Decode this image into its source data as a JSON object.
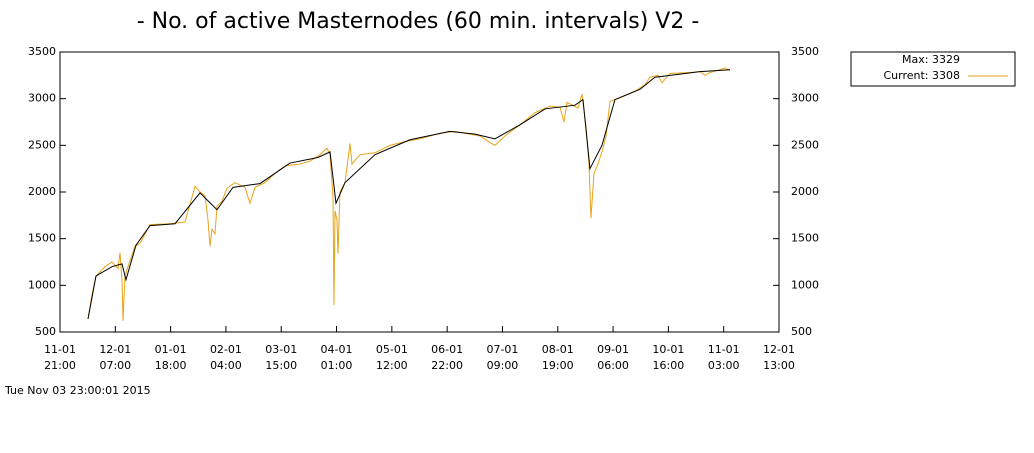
{
  "chart_data": {
    "type": "line",
    "title": "- No. of active Masternodes (60 min. intervals) V2 -",
    "legend_note": "Max: 3329",
    "timestamp": "Tue Nov 03 23:00:01 2015",
    "xlim": [
      0,
      13
    ],
    "xticks": [
      {
        "value": 0,
        "label": [
          "11-01",
          "21:00"
        ]
      },
      {
        "value": 1,
        "label": [
          "12-01",
          "07:00"
        ]
      },
      {
        "value": 2,
        "label": [
          "01-01",
          "18:00"
        ]
      },
      {
        "value": 3,
        "label": [
          "02-01",
          "04:00"
        ]
      },
      {
        "value": 4,
        "label": [
          "03-01",
          "15:00"
        ]
      },
      {
        "value": 5,
        "label": [
          "04-01",
          "01:00"
        ]
      },
      {
        "value": 6,
        "label": [
          "05-01",
          "12:00"
        ]
      },
      {
        "value": 7,
        "label": [
          "06-01",
          "22:00"
        ]
      },
      {
        "value": 8,
        "label": [
          "07-01",
          "09:00"
        ]
      },
      {
        "value": 9,
        "label": [
          "08-01",
          "19:00"
        ]
      },
      {
        "value": 10,
        "label": [
          "09-01",
          "06:00"
        ]
      },
      {
        "value": 11,
        "label": [
          "10-01",
          "16:00"
        ]
      },
      {
        "value": 12,
        "label": [
          "11-01",
          "03:00"
        ]
      },
      {
        "value": 13,
        "label": [
          "12-01",
          "13:00"
        ]
      }
    ],
    "ylim": [
      500,
      3500
    ],
    "yticks": [
      500,
      1000,
      1500,
      2000,
      2500,
      3000,
      3500
    ],
    "y2lim": [
      500,
      3500
    ],
    "y2ticks": [
      500,
      1000,
      1500,
      2000,
      2500,
      3000,
      3500
    ],
    "legend": "top-right",
    "series": [
      {
        "name": "Current: 3308",
        "color": "#e8a317",
        "x": [
          0.506,
          0.579,
          0.651,
          0.814,
          0.94,
          1.049,
          1.085,
          1.121,
          1.139,
          1.175,
          1.229,
          1.356,
          1.446,
          1.627,
          1.989,
          2.26,
          2.441,
          2.531,
          2.622,
          2.676,
          2.712,
          2.748,
          2.802,
          2.839,
          2.929,
          3.019,
          3.164,
          3.345,
          3.435,
          3.526,
          3.706,
          3.887,
          4.068,
          4.339,
          4.52,
          4.701,
          4.827,
          4.882,
          4.936,
          4.954,
          4.972,
          5.008,
          5.026,
          5.062,
          5.153,
          5.243,
          5.279,
          5.424,
          5.695,
          5.966,
          6.238,
          6.509,
          6.87,
          7.142,
          7.413,
          7.594,
          7.774,
          7.865,
          8.046,
          8.317,
          8.588,
          8.859,
          9.04,
          9.112,
          9.167,
          9.366,
          9.438,
          9.51,
          9.564,
          9.6,
          9.655,
          9.727,
          9.799,
          9.872,
          9.944,
          10.125,
          10.396,
          10.577,
          10.667,
          10.812,
          10.884,
          11.029,
          11.39,
          11.571,
          11.662,
          11.752,
          11.933,
          12.023,
          12.114
        ],
        "values": [
          640,
          900,
          1100,
          1200,
          1250,
          1180,
          1350,
          1050,
          620,
          1100,
          1200,
          1420,
          1450,
          1650,
          1660,
          1680,
          2060,
          2000,
          1960,
          1700,
          1420,
          1600,
          1550,
          1850,
          1900,
          2040,
          2100,
          2050,
          1880,
          2050,
          2100,
          2200,
          2280,
          2300,
          2330,
          2400,
          2470,
          2400,
          1950,
          790,
          1800,
          1700,
          1340,
          2000,
          2100,
          2520,
          2300,
          2400,
          2420,
          2500,
          2540,
          2570,
          2630,
          2650,
          2620,
          2600,
          2530,
          2500,
          2600,
          2720,
          2850,
          2920,
          2910,
          2750,
          2960,
          2900,
          3050,
          2700,
          2300,
          1720,
          2200,
          2300,
          2430,
          2600,
          2970,
          3010,
          3080,
          3150,
          3230,
          3250,
          3170,
          3270,
          3280,
          3290,
          3250,
          3280,
          3310,
          3330,
          3300
        ]
      },
      {
        "color": "#000000",
        "x": [
          0.506,
          0.651,
          0.94,
          1.121,
          1.193,
          1.374,
          1.627,
          2.08,
          2.531,
          2.839,
          3.128,
          3.616,
          4.158,
          4.664,
          4.882,
          4.99,
          5.153,
          5.695,
          6.328,
          7.051,
          7.503,
          7.865,
          8.317,
          8.769,
          9.311,
          9.456,
          9.582,
          9.799,
          10.034,
          10.486,
          10.757,
          11.571,
          12.114
        ],
        "values": [
          640,
          1100,
          1200,
          1230,
          1060,
          1430,
          1640,
          1660,
          1990,
          1810,
          2050,
          2090,
          2310,
          2370,
          2430,
          1880,
          2100,
          2400,
          2560,
          2650,
          2620,
          2570,
          2720,
          2890,
          2930,
          2990,
          2250,
          2500,
          2990,
          3100,
          3230,
          3290,
          3310
        ]
      }
    ]
  }
}
